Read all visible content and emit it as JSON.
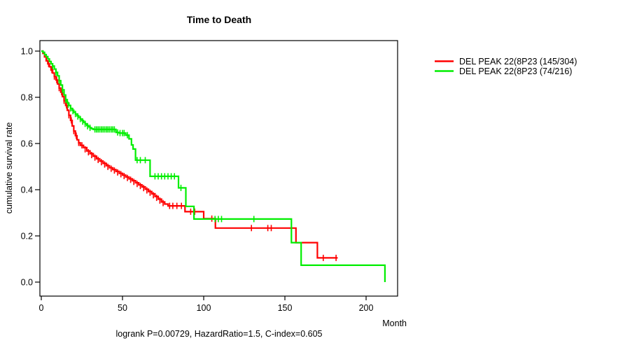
{
  "title": "Time to Death",
  "footer_annotation": "logrank P=0.00729, HazardRatio=1.5, C-index=0.605",
  "colors": {
    "background": "#ffffff",
    "axis": "#000000",
    "series_red": "#ff0000",
    "series_green": "#00ee00"
  },
  "chart_data": {
    "type": "line",
    "subtype": "kaplan-meier-step-survival",
    "title": "Time to Death",
    "xlabel": "Month",
    "ylabel": "cumulative survival rate",
    "x_ticks": [
      0,
      50,
      100,
      150,
      200
    ],
    "y_ticks": [
      "0.0",
      "0.2",
      "0.4",
      "0.6",
      "0.8",
      "1.0"
    ],
    "xlim": [
      0,
      220
    ],
    "ylim": [
      0.0,
      1.0
    ],
    "grid": false,
    "legend_position": "outside-top-right",
    "annotation": "logrank P=0.00729, HazardRatio=1.5, C-index=0.605",
    "series": [
      {
        "name": "DEL PEAK 22(8P23 (145/304)",
        "color": "#ff0000",
        "events_total": "145/304",
        "start": [
          0,
          1.0
        ],
        "end_time": 182.5,
        "steps": [
          [
            1,
            0.99
          ],
          [
            2,
            0.975
          ],
          [
            3,
            0.958
          ],
          [
            4,
            0.945
          ],
          [
            5,
            0.932
          ],
          [
            6,
            0.918
          ],
          [
            7,
            0.905
          ],
          [
            8,
            0.89
          ],
          [
            9,
            0.875
          ],
          [
            10,
            0.858
          ],
          [
            11,
            0.84
          ],
          [
            12,
            0.822
          ],
          [
            13,
            0.803
          ],
          [
            14,
            0.785
          ],
          [
            15,
            0.765
          ],
          [
            16,
            0.744
          ],
          [
            17,
            0.722
          ],
          [
            18,
            0.7
          ],
          [
            19,
            0.676
          ],
          [
            20,
            0.654
          ],
          [
            21,
            0.634
          ],
          [
            22,
            0.616
          ],
          [
            23,
            0.603
          ],
          [
            24,
            0.592
          ],
          [
            26,
            0.582
          ],
          [
            28,
            0.568
          ],
          [
            30,
            0.556
          ],
          [
            32,
            0.545
          ],
          [
            34,
            0.534
          ],
          [
            36,
            0.524
          ],
          [
            38,
            0.514
          ],
          [
            40,
            0.504
          ],
          [
            42,
            0.495
          ],
          [
            44,
            0.487
          ],
          [
            46,
            0.479
          ],
          [
            48,
            0.471
          ],
          [
            50,
            0.463
          ],
          [
            52,
            0.455
          ],
          [
            54,
            0.447
          ],
          [
            56,
            0.439
          ],
          [
            58,
            0.43
          ],
          [
            60,
            0.421
          ],
          [
            62,
            0.412
          ],
          [
            64,
            0.402
          ],
          [
            66,
            0.392
          ],
          [
            68,
            0.382
          ],
          [
            70,
            0.371
          ],
          [
            72,
            0.359
          ],
          [
            74,
            0.347
          ],
          [
            76,
            0.338
          ],
          [
            78,
            0.33
          ],
          [
            88.5,
            0.305
          ],
          [
            100,
            0.275
          ],
          [
            107.2,
            0.234
          ],
          [
            156.8,
            0.171
          ],
          [
            170,
            0.105
          ]
        ],
        "censors": [
          [
            4.5,
            0.945
          ],
          [
            6.5,
            0.918
          ],
          [
            8,
            0.89
          ],
          [
            9.5,
            0.875
          ],
          [
            11,
            0.84
          ],
          [
            12.5,
            0.822
          ],
          [
            14,
            0.785
          ],
          [
            15.5,
            0.765
          ],
          [
            17,
            0.722
          ],
          [
            18.5,
            0.7
          ],
          [
            20,
            0.654
          ],
          [
            21.5,
            0.634
          ],
          [
            23,
            0.603
          ],
          [
            25,
            0.592
          ],
          [
            27,
            0.575
          ],
          [
            29,
            0.562
          ],
          [
            31,
            0.55
          ],
          [
            33,
            0.539
          ],
          [
            35,
            0.529
          ],
          [
            37,
            0.519
          ],
          [
            39,
            0.509
          ],
          [
            41,
            0.499
          ],
          [
            43,
            0.491
          ],
          [
            45,
            0.483
          ],
          [
            47,
            0.475
          ],
          [
            49,
            0.467
          ],
          [
            51,
            0.459
          ],
          [
            53,
            0.451
          ],
          [
            55,
            0.443
          ],
          [
            57,
            0.434
          ],
          [
            59,
            0.425
          ],
          [
            61,
            0.416
          ],
          [
            63,
            0.407
          ],
          [
            65,
            0.397
          ],
          [
            67,
            0.387
          ],
          [
            69,
            0.376
          ],
          [
            71,
            0.365
          ],
          [
            73,
            0.353
          ],
          [
            75,
            0.342
          ],
          [
            79,
            0.33
          ],
          [
            81,
            0.33
          ],
          [
            83.5,
            0.33
          ],
          [
            86.3,
            0.33
          ],
          [
            92,
            0.305
          ],
          [
            94.5,
            0.305
          ],
          [
            105,
            0.275
          ],
          [
            129.4,
            0.234
          ],
          [
            139.5,
            0.234
          ],
          [
            141.6,
            0.234
          ],
          [
            173.6,
            0.105
          ],
          [
            181.5,
            0.105
          ]
        ]
      },
      {
        "name": "DEL PEAK 22(8P23 (74/216)",
        "color": "#00ee00",
        "events_total": "74/216",
        "start": [
          0,
          1.0
        ],
        "end_time": 211.6,
        "steps": [
          [
            1,
            0.995
          ],
          [
            2,
            0.985
          ],
          [
            3,
            0.976
          ],
          [
            4,
            0.966
          ],
          [
            5,
            0.955
          ],
          [
            6,
            0.945
          ],
          [
            7,
            0.935
          ],
          [
            8,
            0.922
          ],
          [
            9,
            0.908
          ],
          [
            10,
            0.893
          ],
          [
            11,
            0.872
          ],
          [
            12,
            0.853
          ],
          [
            13,
            0.832
          ],
          [
            14,
            0.81
          ],
          [
            15,
            0.79
          ],
          [
            16,
            0.775
          ],
          [
            17,
            0.765
          ],
          [
            18,
            0.752
          ],
          [
            19,
            0.744
          ],
          [
            20,
            0.735
          ],
          [
            21,
            0.728
          ],
          [
            22,
            0.72
          ],
          [
            23,
            0.713
          ],
          [
            24,
            0.706
          ],
          [
            25,
            0.699
          ],
          [
            26,
            0.692
          ],
          [
            27,
            0.685
          ],
          [
            28,
            0.678
          ],
          [
            29,
            0.672
          ],
          [
            30,
            0.668
          ],
          [
            31,
            0.664
          ],
          [
            32,
            0.661
          ],
          [
            46,
            0.648
          ],
          [
            48,
            0.645
          ],
          [
            52,
            0.636
          ],
          [
            54,
            0.62
          ],
          [
            55.5,
            0.594
          ],
          [
            56.5,
            0.576
          ],
          [
            58,
            0.528
          ],
          [
            67,
            0.458
          ],
          [
            84.5,
            0.408
          ],
          [
            89,
            0.328
          ],
          [
            94,
            0.273
          ],
          [
            154,
            0.171
          ],
          [
            160,
            0.073
          ],
          [
            211.6,
            0.0
          ]
        ],
        "censors": [
          [
            7,
            0.935
          ],
          [
            9,
            0.908
          ],
          [
            11,
            0.872
          ],
          [
            13,
            0.832
          ],
          [
            15,
            0.79
          ],
          [
            16.5,
            0.768
          ],
          [
            18,
            0.752
          ],
          [
            19.5,
            0.74
          ],
          [
            21,
            0.728
          ],
          [
            22.5,
            0.717
          ],
          [
            24,
            0.706
          ],
          [
            25.5,
            0.695
          ],
          [
            27,
            0.685
          ],
          [
            28.5,
            0.675
          ],
          [
            30,
            0.668
          ],
          [
            33,
            0.661
          ],
          [
            34,
            0.661
          ],
          [
            35,
            0.661
          ],
          [
            36,
            0.661
          ],
          [
            37,
            0.661
          ],
          [
            38,
            0.661
          ],
          [
            39,
            0.661
          ],
          [
            40,
            0.661
          ],
          [
            41,
            0.661
          ],
          [
            42,
            0.661
          ],
          [
            43,
            0.661
          ],
          [
            44,
            0.661
          ],
          [
            45,
            0.661
          ],
          [
            47,
            0.648
          ],
          [
            48.5,
            0.645
          ],
          [
            50,
            0.645
          ],
          [
            51,
            0.645
          ],
          [
            53,
            0.636
          ],
          [
            59,
            0.528
          ],
          [
            61,
            0.528
          ],
          [
            64,
            0.528
          ],
          [
            70,
            0.458
          ],
          [
            72,
            0.458
          ],
          [
            74,
            0.458
          ],
          [
            76,
            0.458
          ],
          [
            78,
            0.458
          ],
          [
            80,
            0.458
          ],
          [
            82,
            0.458
          ],
          [
            86,
            0.408
          ],
          [
            107,
            0.273
          ],
          [
            109,
            0.273
          ],
          [
            111,
            0.273
          ],
          [
            130.9,
            0.273
          ]
        ]
      }
    ]
  }
}
